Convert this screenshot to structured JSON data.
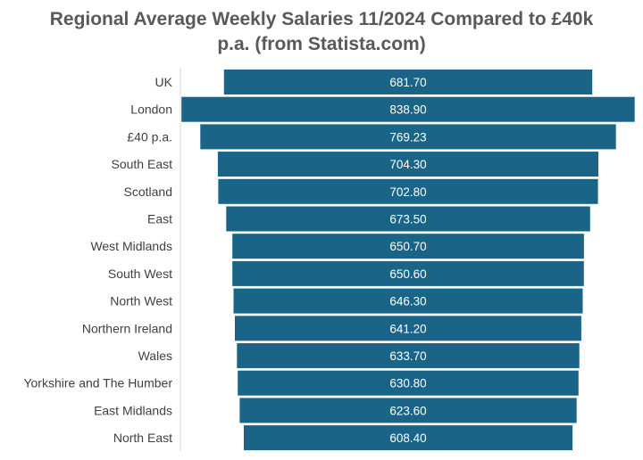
{
  "chart_data": {
    "type": "bar",
    "orientation": "horizontal",
    "layout": "funnel (bars centered)",
    "title": "Regional Average Weekly Salaries 11/2024  Compared to £40k\np.a. (from Statista.com)",
    "categories": [
      "UK",
      "London",
      "£40 p.a.",
      "South East",
      "Scotland",
      "East",
      "West Midlands",
      "South West",
      "North West",
      "Northern Ireland",
      "Wales",
      "Yorkshire and The Humber",
      "East Midlands",
      "North East"
    ],
    "values": [
      681.7,
      838.9,
      769.23,
      704.3,
      702.8,
      673.5,
      650.7,
      650.6,
      646.3,
      641.2,
      633.7,
      630.8,
      623.6,
      608.4
    ],
    "value_labels": [
      "681.70",
      "838.90",
      "769.23",
      "704.30",
      "702.80",
      "673.50",
      "650.70",
      "650.60",
      "646.30",
      "641.20",
      "633.70",
      "630.80",
      "623.60",
      "608.40"
    ],
    "xlabel": "",
    "ylabel": "",
    "grid": false,
    "legend": "none",
    "bar_color": "#1a6488",
    "label_color": "#ffffff"
  }
}
